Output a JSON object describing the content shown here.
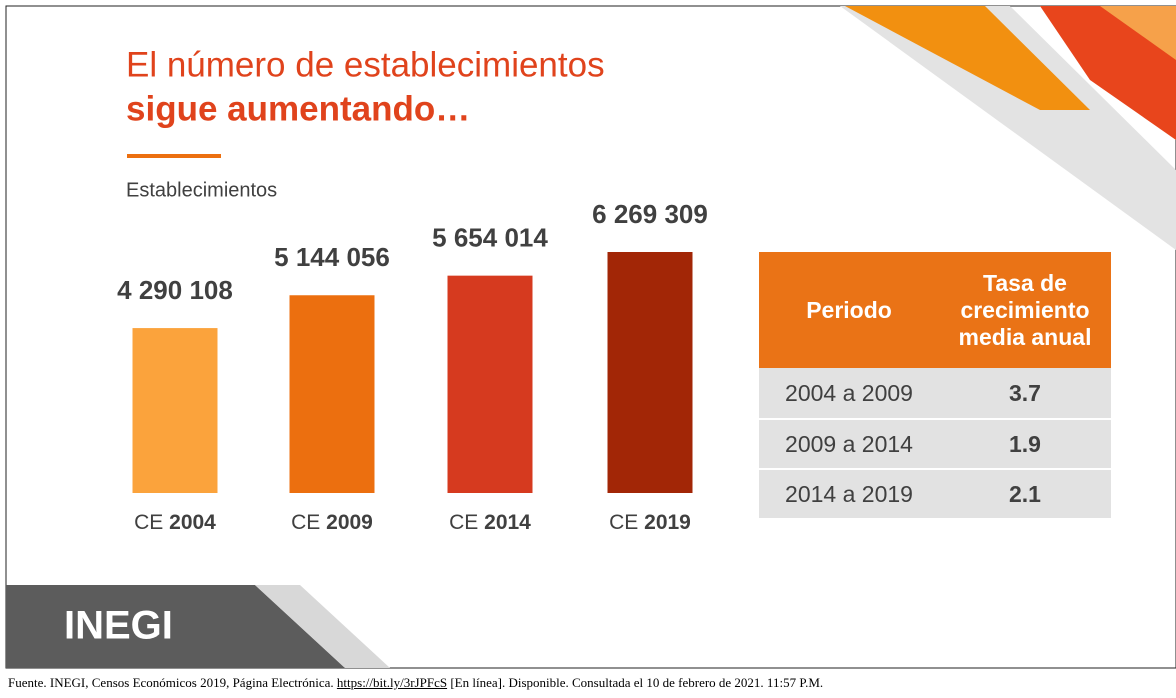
{
  "title_line1": "El número de establecimientos",
  "title_line2": "sigue aumentando…",
  "chart_data": {
    "type": "bar",
    "subtitle": "Establecimientos",
    "categories": [
      "CE 2004",
      "CE 2009",
      "CE 2014",
      "CE 2019"
    ],
    "values": [
      4290108,
      5144056,
      5654014,
      6269309
    ],
    "value_labels": [
      "4 290 108",
      "5 144 056",
      "5 654 014",
      "6 269 309"
    ],
    "colors": [
      "#fba33c",
      "#ec6f0f",
      "#d63a1f",
      "#a22606"
    ]
  },
  "table": {
    "header": [
      "Periodo",
      "Tasa de crecimiento media anual"
    ],
    "rows": [
      [
        "2004 a 2009",
        3.7
      ],
      [
        "2009 a 2014",
        1.9
      ],
      [
        "2014 a 2019",
        2.1
      ]
    ]
  },
  "logo": "INEGI",
  "footer": {
    "before": "Fuente. INEGI, Censos Económicos 2019, Página Electrónica. ",
    "link": "https://bit.ly/3rJPFcS",
    "after": " [En línea]. Disponible. Consultada el 10 de febrero de 2021. 11:57 P.M."
  }
}
